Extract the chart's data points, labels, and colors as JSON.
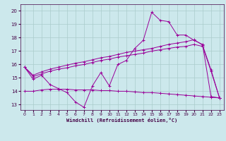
{
  "xlabel": "Windchill (Refroidissement éolien,°C)",
  "x_ticks": [
    0,
    1,
    2,
    3,
    4,
    5,
    6,
    7,
    8,
    9,
    10,
    11,
    12,
    13,
    14,
    15,
    16,
    17,
    18,
    19,
    20,
    21,
    22,
    23
  ],
  "ylim": [
    12.6,
    20.5
  ],
  "xlim": [
    -0.5,
    23.5
  ],
  "yticks": [
    13,
    14,
    15,
    16,
    17,
    18,
    19,
    20
  ],
  "background_color": "#cce8ec",
  "grid_color": "#aacccc",
  "line_color": "#990099",
  "line1_y": [
    15.8,
    14.9,
    15.2,
    14.5,
    14.2,
    13.9,
    13.2,
    12.8,
    14.4,
    15.4,
    14.4,
    16.0,
    16.3,
    17.2,
    17.8,
    19.9,
    19.3,
    19.2,
    18.2,
    18.2,
    17.8,
    17.5,
    13.6,
    13.5
  ],
  "line2_y": [
    15.8,
    15.1,
    15.3,
    15.5,
    15.65,
    15.75,
    15.9,
    16.0,
    16.15,
    16.3,
    16.4,
    16.55,
    16.65,
    16.75,
    16.85,
    17.0,
    17.1,
    17.2,
    17.3,
    17.35,
    17.5,
    17.35,
    15.5,
    13.5
  ],
  "line3_y": [
    15.8,
    15.2,
    15.45,
    15.65,
    15.8,
    15.95,
    16.1,
    16.2,
    16.35,
    16.5,
    16.6,
    16.75,
    16.9,
    17.0,
    17.1,
    17.2,
    17.35,
    17.5,
    17.6,
    17.7,
    17.85,
    17.45,
    15.6,
    13.5
  ],
  "line4_y": [
    14.0,
    14.0,
    14.1,
    14.15,
    14.15,
    14.15,
    14.1,
    14.1,
    14.1,
    14.05,
    14.05,
    14.0,
    14.0,
    13.95,
    13.9,
    13.9,
    13.85,
    13.8,
    13.75,
    13.7,
    13.65,
    13.6,
    13.55,
    13.5
  ]
}
